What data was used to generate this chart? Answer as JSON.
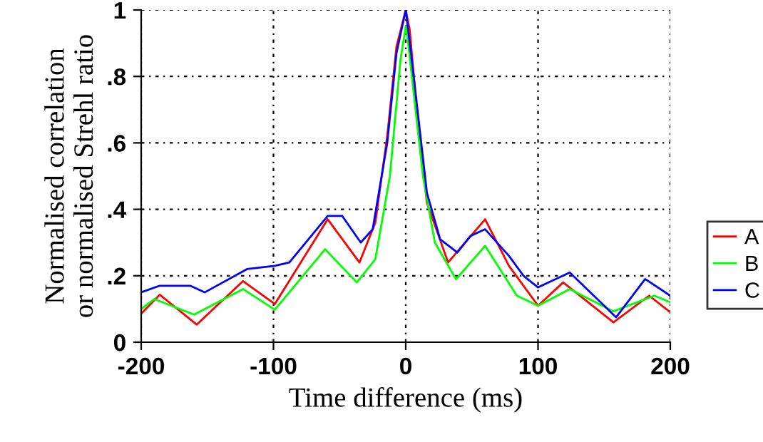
{
  "chart_data": {
    "type": "line",
    "xlabel": "Time difference (ms)",
    "ylabel": "Normalised correlation\nor normalised Strehl ratio",
    "xlim": [
      -200,
      200
    ],
    "xticks": [
      -200,
      -100,
      0,
      100,
      200
    ],
    "ylim": [
      0,
      1
    ],
    "yticks": [
      {
        "value": 0,
        "label": "0"
      },
      {
        "value": 0.2,
        "label": ".2"
      },
      {
        "value": 0.4,
        "label": ".4"
      },
      {
        "value": 0.6,
        "label": ".6"
      },
      {
        "value": 0.8,
        "label": ".8"
      },
      {
        "value": 1,
        "label": "1"
      }
    ],
    "grid": true,
    "legend": "right",
    "series": [
      {
        "name": "A",
        "color": "#ff0000",
        "x": [
          -200,
          -186,
          -158,
          -123,
          -99,
          -59,
          -35,
          -23,
          -14,
          -7,
          0,
          3,
          9,
          16,
          32,
          60,
          78,
          100,
          119,
          157,
          184,
          200
        ],
        "values": [
          0.086,
          0.143,
          0.053,
          0.184,
          0.115,
          0.37,
          0.24,
          0.36,
          0.62,
          0.89,
          1.0,
          0.94,
          0.67,
          0.42,
          0.24,
          0.37,
          0.23,
          0.11,
          0.18,
          0.06,
          0.14,
          0.09
        ]
      },
      {
        "name": "B",
        "color": "#00ff00",
        "x": [
          -200,
          -190,
          -160,
          -123,
          -99,
          -61,
          -37,
          -23,
          -12,
          -4,
          0,
          1,
          6,
          13,
          22,
          38,
          60,
          84,
          100,
          124,
          157,
          188,
          200
        ],
        "values": [
          0.1,
          0.13,
          0.083,
          0.16,
          0.098,
          0.28,
          0.18,
          0.25,
          0.5,
          0.85,
          0.95,
          0.93,
          0.75,
          0.5,
          0.3,
          0.19,
          0.29,
          0.14,
          0.11,
          0.16,
          0.093,
          0.14,
          0.12
        ]
      },
      {
        "name": "C",
        "color": "#0000ff",
        "x": [
          -200,
          -186,
          -163,
          -152,
          -120,
          -99,
          -88,
          -59,
          -48,
          -34,
          -25,
          -14,
          -7,
          0,
          6,
          16,
          26,
          39,
          49,
          60,
          78,
          89,
          100,
          124,
          159,
          181,
          200
        ],
        "values": [
          0.15,
          0.17,
          0.17,
          0.15,
          0.22,
          0.23,
          0.24,
          0.38,
          0.38,
          0.3,
          0.34,
          0.6,
          0.87,
          1.0,
          0.8,
          0.45,
          0.31,
          0.27,
          0.32,
          0.34,
          0.26,
          0.2,
          0.165,
          0.21,
          0.075,
          0.19,
          0.14
        ]
      }
    ]
  }
}
